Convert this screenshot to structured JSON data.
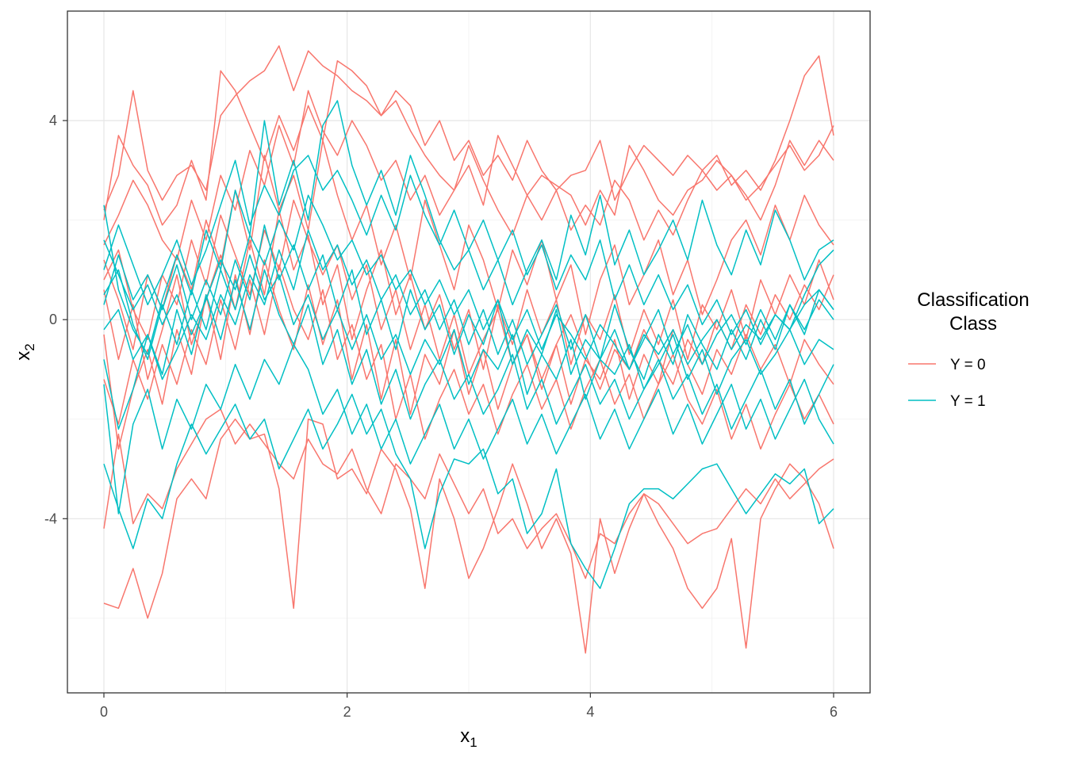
{
  "chart_data": {
    "type": "line",
    "title": "",
    "xlabel": "x",
    "xlabel_sub": "1",
    "ylabel": "x",
    "ylabel_sub": "2",
    "xlim": [
      -0.3,
      6.3
    ],
    "ylim": [
      -7.5,
      6.2
    ],
    "x_ticks": [
      0,
      2,
      4,
      6
    ],
    "x_tick_labels": [
      "0",
      "2",
      "4",
      "6"
    ],
    "y_ticks": [
      -4,
      0,
      4
    ],
    "y_tick_labels": [
      "-4",
      "0",
      "4"
    ],
    "x_minor": [
      1,
      3,
      5
    ],
    "y_minor": [
      -6,
      -2,
      2
    ],
    "grid": true,
    "legend": {
      "title_lines": [
        "Classification",
        "Class"
      ],
      "position": "right",
      "entries": [
        {
          "label": "Y = 0",
          "color": "#F8766D"
        },
        {
          "label": "Y = 1",
          "color": "#00BFC4"
        }
      ]
    },
    "x": [
      0,
      0.12,
      0.24,
      0.36,
      0.48,
      0.6,
      0.72,
      0.84,
      0.96,
      1.08,
      1.2,
      1.32,
      1.44,
      1.56,
      1.68,
      1.8,
      1.92,
      2.04,
      2.16,
      2.28,
      2.4,
      2.52,
      2.64,
      2.76,
      2.88,
      3.0,
      3.12,
      3.24,
      3.36,
      3.48,
      3.6,
      3.72,
      3.84,
      3.96,
      4.08,
      4.2,
      4.32,
      4.44,
      4.56,
      4.68,
      4.8,
      4.92,
      5.04,
      5.16,
      5.28,
      5.4,
      5.52,
      5.64,
      5.76,
      5.88,
      6.0
    ],
    "series": [
      {
        "group": "Y = 0",
        "values": [
          -5.7,
          -5.8,
          -5.0,
          -6.0,
          -5.1,
          -3.6,
          -3.2,
          -3.6,
          -2.4,
          -2.0,
          -2.4,
          -2.3,
          -3.4,
          -5.8,
          -2.0,
          -2.1,
          -3.2,
          -3.0,
          -3.5,
          -2.6,
          -3.0,
          -3.8,
          -5.4,
          -3.2,
          -4.0,
          -5.2,
          -4.6,
          -3.8,
          -2.9,
          -3.7,
          -4.6,
          -4.0,
          -4.7,
          -6.7,
          -4.0,
          -5.1,
          -4.2,
          -3.5,
          -4.1,
          -4.6,
          -5.4,
          -5.8,
          -5.4,
          -4.4,
          -6.6,
          -4.0,
          -3.4,
          -2.9,
          -3.2,
          -3.7,
          -4.6
        ]
      },
      {
        "group": "Y = 0",
        "values": [
          -4.2,
          -2.3,
          -4.1,
          -3.5,
          -3.8,
          -3.0,
          -2.5,
          -2.0,
          -1.8,
          -2.5,
          -2.1,
          -2.5,
          -2.9,
          -3.2,
          -2.4,
          -2.9,
          -3.1,
          -2.6,
          -3.4,
          -3.9,
          -2.9,
          -3.2,
          -3.6,
          -2.7,
          -3.3,
          -3.9,
          -3.4,
          -4.3,
          -4.0,
          -4.6,
          -4.2,
          -3.9,
          -4.5,
          -5.2,
          -4.3,
          -4.5,
          -3.9,
          -3.5,
          -3.7,
          -4.1,
          -4.5,
          -4.3,
          -4.2,
          -3.8,
          -3.4,
          -3.7,
          -3.2,
          -3.6,
          -3.3,
          -3.0,
          -2.8
        ]
      },
      {
        "group": "Y = 0",
        "values": [
          2.2,
          2.9,
          4.6,
          3.0,
          2.4,
          2.9,
          3.1,
          2.6,
          4.1,
          4.5,
          4.8,
          5.0,
          5.5,
          4.6,
          5.4,
          5.1,
          4.9,
          4.6,
          4.4,
          4.1,
          4.6,
          4.3,
          3.5,
          4.0,
          3.2,
          3.6,
          2.9,
          3.3,
          2.8,
          3.6,
          3.0,
          2.6,
          2.9,
          3.0,
          3.6,
          2.4,
          3.0,
          3.5,
          3.2,
          2.9,
          3.3,
          3.0,
          3.3,
          2.7,
          3.0,
          2.6,
          3.2,
          4.0,
          4.9,
          5.3,
          3.7
        ]
      },
      {
        "group": "Y = 0",
        "values": [
          2.0,
          3.7,
          3.1,
          2.7,
          1.9,
          2.3,
          3.2,
          2.4,
          5.0,
          4.6,
          3.9,
          3.2,
          4.1,
          3.4,
          4.3,
          3.6,
          5.2,
          5.0,
          4.7,
          4.1,
          4.4,
          3.8,
          3.3,
          2.9,
          2.6,
          3.1,
          2.3,
          3.7,
          3.1,
          2.5,
          2.9,
          2.7,
          2.5,
          1.9,
          2.6,
          2.1,
          3.5,
          3.0,
          2.4,
          2.1,
          2.6,
          2.8,
          3.2,
          2.9,
          2.4,
          2.7,
          3.1,
          3.5,
          3.0,
          3.3,
          3.9
        ]
      },
      {
        "group": "Y = 0",
        "values": [
          1.5,
          2.1,
          2.8,
          2.3,
          1.6,
          1.2,
          2.4,
          1.6,
          2.9,
          2.2,
          3.4,
          2.7,
          3.9,
          3.1,
          4.6,
          3.8,
          3.3,
          4.0,
          3.5,
          2.8,
          3.2,
          2.4,
          2.9,
          2.1,
          2.6,
          3.5,
          2.8,
          2.2,
          1.7,
          2.5,
          2.0,
          2.6,
          1.8,
          2.3,
          1.9,
          2.8,
          2.4,
          1.6,
          2.2,
          1.7,
          2.4,
          3.0,
          2.6,
          2.9,
          2.5,
          2.0,
          2.7,
          3.6,
          3.1,
          3.6,
          3.2
        ]
      },
      {
        "group": "Y = 0",
        "values": [
          1.2,
          0.4,
          -0.6,
          0.9,
          0.2,
          1.3,
          0.6,
          2.0,
          1.1,
          2.6,
          1.4,
          3.3,
          2.2,
          2.9,
          1.8,
          3.6,
          2.5,
          1.6,
          2.3,
          1.1,
          1.9,
          0.8,
          2.4,
          1.5,
          0.6,
          1.9,
          1.2,
          0.2,
          1.4,
          0.7,
          1.6,
          0.4,
          1.1,
          -0.3,
          0.8,
          1.5,
          0.3,
          0.9,
          1.6,
          0.5,
          1.2,
          0.1,
          0.8,
          1.6,
          2.0,
          1.3,
          2.3,
          1.6,
          2.5,
          1.9,
          1.5
        ]
      },
      {
        "group": "Y = 0",
        "values": [
          0.6,
          -0.8,
          0.3,
          -1.2,
          -0.2,
          0.9,
          -0.5,
          0.4,
          1.3,
          0.2,
          1.6,
          0.5,
          2.2,
          1.0,
          1.7,
          0.3,
          1.1,
          -0.4,
          0.6,
          1.4,
          0.1,
          0.9,
          -0.2,
          0.5,
          -0.6,
          0.2,
          -1.0,
          0.3,
          -0.5,
          0.6,
          -0.3,
          0.4,
          -0.9,
          0.1,
          -0.4,
          0.5,
          -0.7,
          0.2,
          -0.5,
          0.4,
          -0.8,
          0.3,
          -0.2,
          0.6,
          -0.4,
          0.8,
          0.1,
          0.9,
          0.3,
          1.2,
          0.4
        ]
      },
      {
        "group": "Y = 0",
        "values": [
          -0.3,
          -2.6,
          -1.4,
          -0.6,
          -1.7,
          -0.2,
          -1.1,
          0.5,
          -0.8,
          0.9,
          -0.3,
          1.2,
          0.2,
          -0.6,
          0.7,
          -0.5,
          0.4,
          -1.2,
          -0.1,
          -1.6,
          -0.4,
          -1.9,
          -0.7,
          -1.3,
          -0.2,
          -1.5,
          -0.6,
          -1.8,
          -0.9,
          -0.3,
          -1.4,
          -0.5,
          -1.7,
          -0.8,
          -1.2,
          -0.4,
          -1.6,
          -0.7,
          -1.3,
          -0.2,
          -0.9,
          -1.5,
          -0.6,
          -1.1,
          -0.3,
          -1.0,
          -0.5,
          -1.3,
          -0.4,
          -0.9,
          -1.3
        ]
      },
      {
        "group": "Y = 0",
        "values": [
          -1.2,
          -2.1,
          -0.8,
          -1.6,
          -0.5,
          -1.3,
          -0.2,
          -0.9,
          0.4,
          -0.6,
          0.8,
          -0.3,
          1.1,
          0.2,
          -0.4,
          0.6,
          -0.8,
          -0.1,
          -1.2,
          -0.5,
          -2.0,
          -1.1,
          -2.4,
          -1.6,
          -1.0,
          -1.9,
          -1.3,
          -2.3,
          -1.5,
          -0.9,
          -1.8,
          -1.2,
          -2.2,
          -1.4,
          -0.8,
          -1.7,
          -1.1,
          -2.0,
          -1.3,
          -0.7,
          -1.6,
          -2.1,
          -1.4,
          -2.4,
          -1.7,
          -2.6,
          -1.9,
          -1.3,
          -2.0,
          -1.5,
          -2.1
        ]
      },
      {
        "group": "Y = 0",
        "values": [
          0.8,
          1.4,
          0.2,
          -0.4,
          0.9,
          0.3,
          1.6,
          0.7,
          2.1,
          1.3,
          0.5,
          1.8,
          1.0,
          2.4,
          1.6,
          0.9,
          1.5,
          0.4,
          1.1,
          -0.2,
          0.6,
          -0.6,
          0.3,
          -0.8,
          0.1,
          -1.1,
          -0.4,
          0.2,
          -0.9,
          -0.3,
          -1.2,
          -0.5,
          0.1,
          -0.7,
          -1.4,
          -0.6,
          -1.0,
          -0.2,
          -0.8,
          -1.3,
          -0.4,
          -0.9,
          0.0,
          -0.6,
          0.3,
          -0.3,
          0.5,
          0.0,
          0.7,
          0.2,
          0.9
        ]
      },
      {
        "group": "Y = 1",
        "values": [
          2.3,
          0.6,
          -0.2,
          -0.7,
          0.4,
          1.3,
          0.5,
          1.8,
          1.0,
          2.6,
          1.7,
          4.0,
          2.3,
          3.2,
          2.0,
          3.9,
          4.4,
          3.1,
          2.3,
          3.0,
          2.1,
          3.3,
          2.5,
          1.6,
          1.0,
          1.4,
          0.6,
          1.2,
          0.3,
          1.0,
          1.6,
          0.8,
          2.1,
          1.3,
          2.5,
          1.1,
          1.8,
          0.9,
          1.4,
          2.0,
          1.2,
          2.4,
          1.5,
          0.9,
          1.8,
          1.1,
          2.2,
          1.6,
          0.8,
          1.4,
          1.6
        ]
      },
      {
        "group": "Y = 1",
        "values": [
          1.0,
          1.9,
          1.1,
          0.3,
          0.9,
          1.6,
          0.7,
          1.4,
          2.3,
          3.2,
          1.9,
          2.7,
          2.1,
          3.0,
          3.3,
          2.6,
          3.0,
          2.4,
          1.7,
          2.5,
          1.8,
          2.9,
          2.1,
          1.5,
          2.2,
          1.4,
          2.0,
          1.2,
          1.8,
          0.9,
          1.5,
          0.6,
          1.3,
          0.8,
          1.6,
          0.4,
          1.1,
          0.3,
          0.9,
          0.2,
          0.7,
          -0.1,
          0.4,
          -0.3,
          0.2,
          -0.5,
          0.1,
          -0.2,
          0.5,
          1.1,
          1.4
        ]
      },
      {
        "group": "Y = 1",
        "values": [
          0.3,
          1.3,
          0.4,
          0.9,
          0.2,
          1.1,
          0.0,
          0.8,
          0.1,
          1.2,
          0.4,
          1.9,
          0.8,
          1.5,
          0.6,
          1.3,
          0.2,
          1.0,
          -0.3,
          0.4,
          -0.6,
          0.6,
          -0.2,
          0.3,
          -0.7,
          0.1,
          -0.5,
          0.4,
          -0.9,
          -0.2,
          -0.7,
          0.2,
          -1.1,
          -0.4,
          -0.8,
          0.3,
          -0.6,
          -1.2,
          -0.3,
          -0.9,
          0.1,
          -0.5,
          -1.0,
          -0.2,
          -0.8,
          0.0,
          -0.6,
          0.3,
          -0.3,
          0.6,
          0.2
        ]
      },
      {
        "group": "Y = 1",
        "values": [
          0.5,
          1.0,
          -0.1,
          -0.8,
          0.3,
          -0.5,
          0.6,
          -0.2,
          1.0,
          0.2,
          1.3,
          0.4,
          0.9,
          -0.1,
          0.5,
          -0.4,
          0.2,
          -0.6,
          0.1,
          -0.8,
          -0.3,
          -1.1,
          -0.4,
          -0.9,
          -0.2,
          -1.3,
          -0.6,
          -1.0,
          -0.3,
          -1.5,
          -0.7,
          -1.2,
          -0.4,
          -1.6,
          -0.8,
          -1.1,
          -0.5,
          -1.4,
          -0.9,
          -0.3,
          -1.2,
          -0.6,
          -1.5,
          -0.8,
          -0.4,
          -1.1,
          -0.7,
          -0.2,
          -0.9,
          -0.4,
          -0.6
        ]
      },
      {
        "group": "Y = 1",
        "values": [
          -0.8,
          -2.2,
          -1.4,
          -0.3,
          -1.1,
          0.2,
          -0.7,
          0.5,
          -0.4,
          0.8,
          -0.2,
          1.0,
          0.1,
          -0.5,
          0.3,
          -0.9,
          -0.2,
          -1.3,
          -0.6,
          -1.7,
          -1.0,
          -2.0,
          -1.3,
          -0.8,
          -1.6,
          -1.1,
          -1.9,
          -1.4,
          -0.7,
          -1.8,
          -1.2,
          -2.1,
          -1.5,
          -0.9,
          -1.7,
          -1.2,
          -2.0,
          -1.4,
          -0.8,
          -1.6,
          -1.1,
          -1.9,
          -1.3,
          -2.2,
          -1.6,
          -1.0,
          -1.8,
          -1.2,
          -2.1,
          -1.5,
          -0.9
        ]
      },
      {
        "group": "Y = 1",
        "values": [
          -1.3,
          -3.9,
          -2.1,
          -1.4,
          -2.6,
          -1.6,
          -2.2,
          -1.3,
          -1.8,
          -0.9,
          -1.6,
          -0.8,
          -1.3,
          -0.5,
          -1.0,
          -1.9,
          -1.4,
          -2.3,
          -1.7,
          -2.6,
          -2.0,
          -2.9,
          -2.3,
          -1.7,
          -2.6,
          -2.0,
          -2.8,
          -2.2,
          -1.6,
          -2.5,
          -1.9,
          -2.7,
          -2.1,
          -1.5,
          -2.4,
          -1.8,
          -2.6,
          -2.0,
          -1.4,
          -2.3,
          -1.7,
          -2.5,
          -1.9,
          -1.3,
          -2.2,
          -1.6,
          -2.4,
          -1.8,
          -1.2,
          -2.0,
          -2.5
        ]
      },
      {
        "group": "Y = 1",
        "values": [
          -2.9,
          -3.8,
          -4.6,
          -3.6,
          -4.0,
          -2.9,
          -2.1,
          -2.7,
          -2.2,
          -1.7,
          -2.4,
          -2.0,
          -3.0,
          -2.4,
          -1.8,
          -2.6,
          -2.1,
          -1.5,
          -2.3,
          -1.8,
          -2.7,
          -3.2,
          -4.6,
          -3.5,
          -2.8,
          -2.9,
          -2.6,
          -3.5,
          -3.2,
          -4.3,
          -3.9,
          -3.0,
          -4.5,
          -5.0,
          -5.4,
          -4.6,
          -3.7,
          -3.4,
          -3.4,
          -3.6,
          -3.3,
          -3.0,
          -2.9,
          -3.4,
          -3.9,
          -3.5,
          -3.1,
          -3.3,
          -3.0,
          -4.1,
          -3.8
        ]
      },
      {
        "group": "Y = 1",
        "values": [
          -0.2,
          0.2,
          -0.8,
          -0.3,
          -1.2,
          -0.6,
          0.1,
          -0.4,
          0.5,
          -0.1,
          0.9,
          0.3,
          1.4,
          0.6,
          1.8,
          1.0,
          1.5,
          0.7,
          1.2,
          0.4,
          0.9,
          0.1,
          0.6,
          -0.2,
          0.4,
          -0.5,
          0.2,
          -0.7,
          0.0,
          -0.9,
          -0.3,
          0.3,
          -0.6,
          0.1,
          -0.8,
          -0.2,
          -1.0,
          -0.4,
          0.2,
          -0.7,
          -0.1,
          -0.9,
          -0.3,
          0.1,
          -0.5,
          0.2,
          -0.4,
          0.3,
          -0.2,
          0.4,
          0.0
        ]
      },
      {
        "group": "Y = 1",
        "values": [
          1.6,
          0.9,
          0.2,
          0.7,
          -0.1,
          0.5,
          -0.3,
          0.4,
          1.2,
          0.6,
          1.7,
          1.1,
          2.0,
          1.4,
          2.5,
          1.9,
          1.2,
          1.6,
          0.9,
          1.3,
          0.6,
          1.0,
          0.3,
          0.8,
          0.1,
          0.6,
          -0.2,
          0.4,
          -0.4,
          0.2,
          -0.6,
          0.1,
          -0.3,
          -0.8,
          -0.1,
          -0.5,
          -1.0,
          -0.3,
          -0.7,
          -0.2,
          -0.9,
          -0.4,
          0.0,
          -0.6,
          -0.1,
          -0.4,
          0.1,
          -0.2,
          0.3,
          0.6,
          0.2
        ]
      }
    ]
  }
}
